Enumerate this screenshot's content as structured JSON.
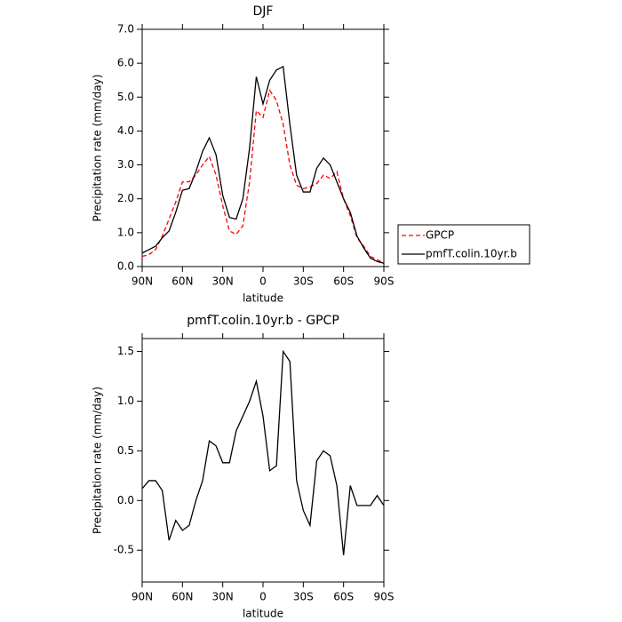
{
  "chart_data": [
    {
      "type": "line",
      "title": "DJF",
      "xlabel": "latitude",
      "ylabel": "Precipitation rate (mm/day)",
      "x": [
        90,
        85,
        80,
        75,
        70,
        65,
        60,
        55,
        50,
        45,
        40,
        35,
        30,
        25,
        20,
        15,
        10,
        5,
        0,
        -5,
        -10,
        -15,
        -20,
        -25,
        -30,
        -35,
        -40,
        -45,
        -50,
        -55,
        -60,
        -65,
        -70,
        -75,
        -80,
        -85,
        -90
      ],
      "xlim": [
        90,
        -90
      ],
      "xticks": [
        {
          "value": 90,
          "label": "90N"
        },
        {
          "value": 60,
          "label": "60N"
        },
        {
          "value": 30,
          "label": "30N"
        },
        0,
        {
          "value": -30,
          "label": "30S"
        },
        {
          "value": -60,
          "label": "60S"
        },
        {
          "value": -90,
          "label": "90S"
        }
      ],
      "ylim": [
        0,
        7
      ],
      "yticks": [
        {
          "value": 0,
          "label": "0.0"
        },
        {
          "value": 1,
          "label": "1.0"
        },
        {
          "value": 2,
          "label": "2.0"
        },
        {
          "value": 3,
          "label": "3.0"
        },
        {
          "value": 4,
          "label": "4.0"
        },
        {
          "value": 5,
          "label": "5.0"
        },
        {
          "value": 6,
          "label": "6.0"
        },
        {
          "value": 7,
          "label": "7.0"
        }
      ],
      "legend": "right",
      "series": [
        {
          "name": "GPCP",
          "color": "#ff0000",
          "line_style": "dashed",
          "values": [
            0.3,
            0.35,
            0.5,
            0.9,
            1.4,
            1.9,
            2.5,
            2.5,
            2.7,
            3.0,
            3.25,
            2.7,
            1.8,
            1.05,
            0.95,
            1.2,
            2.5,
            4.6,
            4.4,
            5.2,
            4.9,
            4.2,
            3.0,
            2.4,
            2.3,
            2.35,
            2.45,
            2.7,
            2.6,
            2.8,
            2.0,
            1.5,
            0.85,
            0.6,
            0.3,
            0.2,
            0.1
          ]
        },
        {
          "name": "pmfT.colin.10yr.b",
          "color": "#000000",
          "line_style": "solid",
          "values": [
            0.4,
            0.5,
            0.6,
            0.85,
            1.05,
            1.6,
            2.25,
            2.3,
            2.8,
            3.4,
            3.8,
            3.3,
            2.1,
            1.45,
            1.4,
            2.0,
            3.5,
            5.6,
            4.8,
            5.5,
            5.8,
            5.9,
            4.2,
            2.7,
            2.2,
            2.2,
            2.9,
            3.2,
            3.0,
            2.5,
            2.0,
            1.6,
            0.9,
            0.55,
            0.25,
            0.15,
            0.1
          ]
        }
      ]
    },
    {
      "type": "line",
      "title": "pmfT.colin.10yr.b - GPCP",
      "xlabel": "latitude",
      "ylabel": "Precipitation rate (mm/day)",
      "x": [
        90,
        85,
        80,
        75,
        70,
        65,
        60,
        55,
        50,
        45,
        40,
        35,
        30,
        25,
        20,
        15,
        10,
        5,
        0,
        -5,
        -10,
        -15,
        -20,
        -25,
        -30,
        -35,
        -40,
        -45,
        -50,
        -55,
        -60,
        -65,
        -70,
        -75,
        -80,
        -85,
        -90
      ],
      "xlim": [
        90,
        -90
      ],
      "xticks": [
        {
          "value": 90,
          "label": "90N"
        },
        {
          "value": 60,
          "label": "60N"
        },
        {
          "value": 30,
          "label": "30N"
        },
        0,
        {
          "value": -30,
          "label": "30S"
        },
        {
          "value": -60,
          "label": "60S"
        },
        {
          "value": -90,
          "label": "90S"
        }
      ],
      "ylim": [
        -0.82,
        1.63
      ],
      "yticks": [
        -0.5,
        {
          "value": 0,
          "label": "0.0"
        },
        0.5,
        {
          "value": 1,
          "label": "1.0"
        },
        1.5
      ],
      "series": [
        {
          "color": "#000000",
          "line_style": "solid",
          "values": [
            0.12,
            0.2,
            0.2,
            0.1,
            -0.4,
            -0.2,
            -0.3,
            -0.25,
            0.0,
            0.2,
            0.6,
            0.55,
            0.38,
            0.38,
            0.7,
            0.85,
            1.0,
            1.2,
            0.85,
            0.3,
            0.35,
            1.5,
            1.4,
            0.2,
            -0.1,
            -0.25,
            0.4,
            0.5,
            0.45,
            0.15,
            -0.55,
            0.15,
            -0.05,
            -0.05,
            -0.05,
            0.05,
            -0.05
          ]
        }
      ]
    }
  ]
}
